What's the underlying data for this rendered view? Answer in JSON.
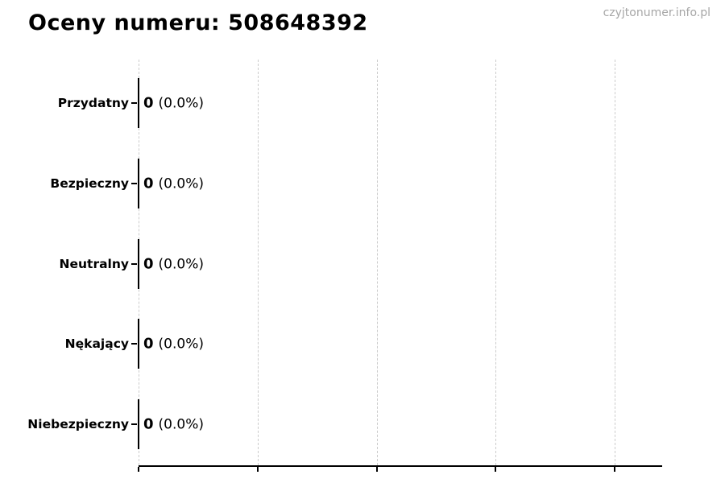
{
  "page": {
    "watermark": "czyjtonumer.info.pl"
  },
  "chart_data": {
    "type": "bar",
    "orientation": "horizontal",
    "title": "Oceny numeru: 508648392",
    "categories": [
      "Przydatny",
      "Bezpieczny",
      "Neutralny",
      "Nękający",
      "Niebezpieczny"
    ],
    "values": [
      0,
      0,
      0,
      0,
      0
    ],
    "counts": [
      "0",
      "0",
      "0",
      "0",
      "0"
    ],
    "percents": [
      "(0.0%)",
      "(0.0%)",
      "(0.0%)",
      "(0.0%)",
      "(0.0%)"
    ],
    "xlabel": "",
    "ylabel": "",
    "x_axis": {
      "tick_count": 5,
      "tick_labels_visible": false
    },
    "grid": true,
    "grid_style": "vertical-dashed",
    "legend": "none",
    "colors": {
      "background": "#ffffff",
      "title": "#000000",
      "category_label": "#000000",
      "value_label": "#000000",
      "watermark": "#a6a6a6",
      "gridline": "#cccccc",
      "axis": "#000000",
      "bar_edge": "#000000"
    }
  }
}
